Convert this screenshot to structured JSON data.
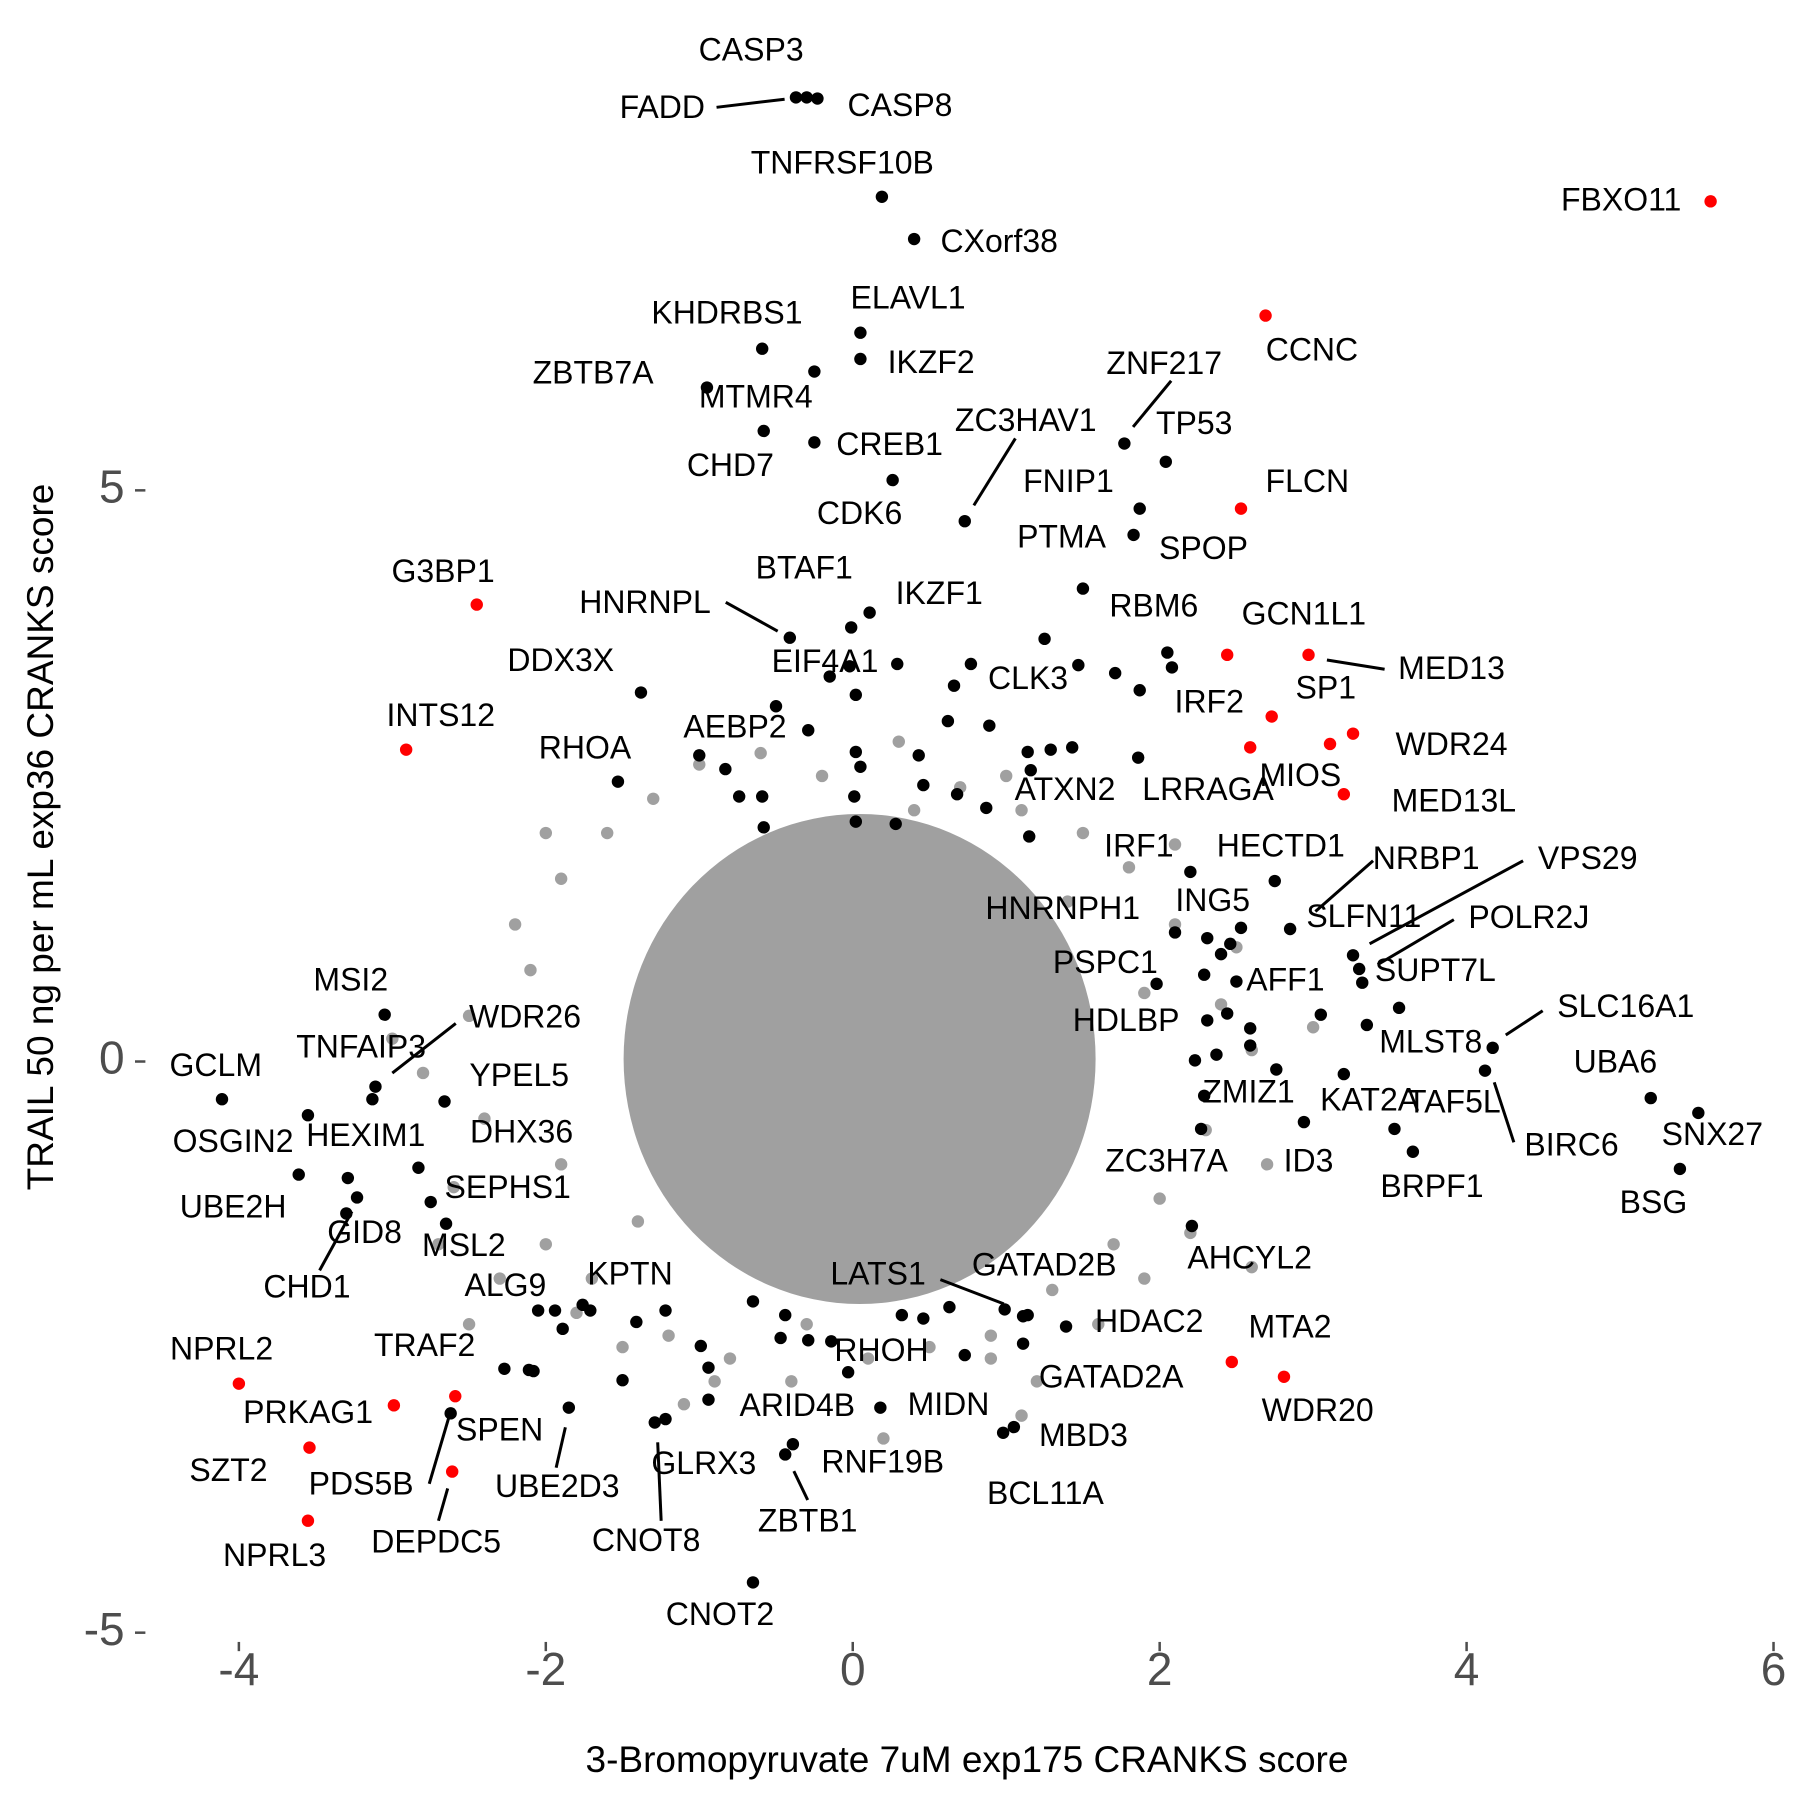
{
  "chart_data": {
    "type": "scatter",
    "x_label": "3-Bromopyruvate 7uM exp175 CRANKS score",
    "y_label": "TRAIL 50 ng per mL exp36 CRANKS score",
    "xlim": [
      -4.6,
      6.05
    ],
    "ylim": [
      -5.1,
      9.1
    ],
    "xticks": [
      -4,
      -2,
      0,
      2,
      4,
      6
    ],
    "yticks": [
      -5,
      0,
      5
    ],
    "series": [
      {
        "color": "#a0a0a0",
        "x": [
          -2.6,
          -2.4,
          -2.5,
          -2.2,
          -2.0,
          -1.9,
          -1.8,
          -1.6,
          -1.5,
          -1.3,
          -1.2,
          -1.0,
          -0.8,
          -0.6,
          -0.4,
          -0.2,
          0.1,
          0.3,
          0.5,
          0.7,
          0.9,
          1.1,
          1.3,
          1.5,
          1.7,
          1.8,
          2.0,
          2.1,
          2.3,
          2.4,
          2.6,
          2.2,
          -2.8,
          -2.3,
          1.9,
          -1.7,
          1.6,
          0.9,
          1.0,
          -0.9,
          2.5,
          -2.1,
          -2.7,
          2.7,
          -1.4,
          1.4,
          -1.9,
          1.9,
          -0.3,
          0.4,
          1.2,
          -2.5,
          3.0,
          -3.0,
          0.2,
          2.1,
          -2.0,
          1.1,
          -1.1,
          2.6
        ],
        "values": [
          -1.1,
          -0.5,
          0.4,
          1.2,
          -1.6,
          1.6,
          -2.2,
          2.0,
          -2.5,
          2.3,
          -2.4,
          2.6,
          -2.6,
          2.7,
          -2.8,
          2.5,
          -2.6,
          2.8,
          -2.5,
          2.4,
          -2.4,
          2.2,
          -2.0,
          2.0,
          -1.6,
          1.7,
          -1.2,
          1.2,
          -0.6,
          0.5,
          0.1,
          -1.5,
          -0.1,
          -1.9,
          -1.9,
          -1.9,
          -2.3,
          -2.6,
          2.5,
          -2.8,
          1.0,
          0.8,
          -1.6,
          -0.9,
          -1.4,
          1.4,
          -0.9,
          0.6,
          -2.3,
          2.2,
          -2.8,
          -2.3,
          0.3,
          0.2,
          -3.3,
          1.9,
          2.0,
          -3.1,
          -3.0,
          -1.8
        ]
      },
      {
        "color": "#000000",
        "x": [
          0.02,
          -0.02,
          -0.15,
          0.66,
          0.62,
          0.89,
          1.25,
          1.47,
          1.71,
          1.87,
          2.08,
          -0.29,
          0.02,
          0.05,
          0.01,
          0.02,
          0.28,
          0.43,
          0.46,
          0.68,
          0.87,
          1.16,
          1.29,
          1.43,
          1.15,
          -1.0,
          -0.83,
          -0.74,
          -0.59,
          -0.58,
          2.31,
          2.46,
          2.4,
          2.59,
          2.59,
          2.37,
          2.76,
          3.05,
          2.44,
          2.23,
          1.98,
          -1.94,
          -1.89,
          -1.76,
          -2.11,
          -1.5,
          -1.41,
          -1.22,
          -0.99,
          -0.94,
          -0.44,
          -0.47,
          -0.29,
          -0.14,
          0.32,
          0.46,
          0.63,
          0.73,
          1.14,
          -0.65,
          -2.08
        ],
        "values": [
          3.21,
          3.46,
          3.37,
          3.29,
          2.98,
          2.94,
          3.7,
          3.47,
          3.4,
          3.25,
          3.45,
          2.9,
          2.71,
          2.58,
          2.32,
          2.1,
          2.08,
          2.68,
          2.42,
          2.34,
          2.22,
          2.55,
          2.73,
          2.75,
          1.97,
          2.68,
          2.56,
          2.32,
          2.32,
          2.05,
          1.08,
          1.03,
          0.94,
          0.29,
          0.14,
          0.06,
          -0.07,
          0.41,
          0.42,
          0.01,
          0.68,
          -2.18,
          -2.34,
          -2.13,
          -2.7,
          -2.79,
          -2.28,
          -2.18,
          -2.49,
          -2.68,
          -2.22,
          -2.42,
          -2.44,
          -2.45,
          -2.22,
          -2.25,
          -2.15,
          -2.57,
          -2.22,
          -2.1,
          -2.71
        ]
      },
      {
        "color": "#000000",
        "labels": [
          "FADD",
          "CASP3",
          "CASP8",
          "TNFRSF10B",
          "CXorf38",
          "KHDRBS1",
          "ELAVL1",
          "IKZF2",
          "ZBTB7A",
          "MTMR4",
          "CHD7",
          "CREB1",
          "CDK6",
          "ZC3HAV1",
          "ZNF217",
          "TP53",
          "FNIP1",
          "SPOP",
          "PTMA",
          "RBM6",
          "BTAF1",
          "IKZF1",
          "HNRNPL",
          "EIF4A1",
          "DDX3X",
          "CLK3",
          "AEBP2",
          "RHOA",
          "ATXN2",
          "LRRAGA",
          "IRF1",
          "HECTD1",
          "NRBP1",
          "VPS29",
          "POLR2J",
          "HNRNPH1",
          "ING5",
          "SLFN11",
          "SUPT7L",
          "PSPC1",
          "AFF1",
          "HDLBP",
          "MLST8",
          "SLC16A1",
          "UBA6",
          "SNX27",
          "BSG",
          "BIRC6",
          "TAF5L",
          "KAT2A",
          "ZMIZ1",
          "ID3",
          "BRPF1",
          "ZC3H7A",
          "AHCYL2",
          "GATAD2B",
          "LATS1",
          "HDAC2",
          "GATAD2A",
          "MBD3",
          "BCL11A",
          "MIDN",
          "RHOH",
          "ARID4B",
          "RNF19B",
          "ZBTB1",
          "KPTN",
          "GLRX3",
          "CNOT8",
          "CNOT2",
          "UBE2D3",
          "ALG9",
          "MSL2",
          "SEPHS1",
          "DHX36",
          "YPEL5",
          "WDR26",
          "MSI2",
          "TNFAIP3",
          "GCLM",
          "OSGIN2",
          "HEXIM1",
          "UBE2H",
          "GID8",
          "CHD1",
          "TRAF2",
          "PDS5B"
        ],
        "x": [
          -0.37,
          -0.3,
          -0.23,
          0.19,
          0.4,
          -0.59,
          0.05,
          0.05,
          -0.95,
          -0.25,
          -0.58,
          -0.25,
          0.26,
          0.73,
          1.77,
          2.04,
          1.87,
          1.83,
          1.5,
          2.05,
          0.11,
          -0.01,
          -0.41,
          0.29,
          -1.38,
          0.77,
          -0.5,
          -1.53,
          1.14,
          1.86,
          2.2,
          2.75,
          2.85,
          3.26,
          3.3,
          2.1,
          2.53,
          3.32,
          3.56,
          2.29,
          2.5,
          2.31,
          3.35,
          4.17,
          5.2,
          5.51,
          5.39,
          4.12,
          3.53,
          3.2,
          2.29,
          2.94,
          3.65,
          2.27,
          2.21,
          0.99,
          1.11,
          1.39,
          1.11,
          1.05,
          0.98,
          0.18,
          -0.03,
          -0.94,
          -0.39,
          -0.44,
          -1.71,
          -1.22,
          -1.29,
          -0.65,
          -1.85,
          -2.05,
          -2.65,
          -2.75,
          -2.83,
          -2.66,
          -3.11,
          -3.05,
          -3.13,
          -4.11,
          -3.55,
          -3.29,
          -3.61,
          -3.3,
          -3.23,
          -2.27,
          -2.62
        ],
        "values": [
          8.44,
          8.44,
          8.43,
          7.57,
          7.2,
          6.24,
          6.38,
          6.15,
          5.9,
          6.04,
          5.52,
          5.42,
          5.09,
          4.73,
          5.41,
          5.25,
          4.84,
          4.61,
          4.14,
          3.58,
          3.93,
          3.8,
          3.71,
          3.48,
          3.23,
          3.48,
          3.11,
          2.45,
          2.71,
          2.66,
          1.66,
          1.58,
          1.16,
          0.93,
          0.81,
          1.13,
          1.17,
          0.69,
          0.47,
          0.76,
          0.7,
          0.36,
          0.32,
          0.12,
          -0.32,
          -0.45,
          -0.94,
          -0.08,
          -0.59,
          -0.11,
          -0.3,
          -0.53,
          -0.79,
          -0.59,
          -1.44,
          -2.17,
          -2.23,
          -2.32,
          -2.47,
          -3.2,
          -3.25,
          -3.03,
          -2.72,
          -2.96,
          -3.35,
          -3.44,
          -2.18,
          -3.13,
          -3.16,
          -4.56,
          -3.03,
          -2.18,
          -1.42,
          -1.23,
          -0.93,
          -0.35,
          -0.22,
          0.41,
          -0.33,
          -0.33,
          -0.47,
          -1.02,
          -0.99,
          -1.33,
          -1.19,
          -2.69,
          -3.08
        ]
      },
      {
        "color": "#ff0000",
        "labels": [
          "FBXO11",
          "CCNC",
          "FLCN",
          "G3BP1",
          "GCN1L1",
          "MED13",
          "SP1",
          "IRF2",
          "WDR24",
          "MIOS",
          "MED13L",
          "INTS12",
          "MTA2",
          "WDR20",
          "NPRL2",
          "PRKAG1",
          "SPEN",
          "SZT2",
          "DEPDC5",
          "NPRL3"
        ],
        "x": [
          5.59,
          2.69,
          2.53,
          -2.45,
          2.44,
          2.97,
          2.73,
          2.59,
          3.26,
          3.11,
          3.2,
          -2.91,
          2.47,
          2.81,
          -4.0,
          -2.99,
          -2.59,
          -3.54,
          -2.61,
          -3.55
        ],
        "values": [
          7.53,
          6.53,
          4.84,
          4.0,
          3.56,
          3.56,
          3.02,
          2.75,
          2.87,
          2.78,
          2.34,
          2.73,
          -2.63,
          -2.76,
          -2.82,
          -3.01,
          -2.93,
          -3.38,
          -3.59,
          -4.02
        ]
      }
    ]
  }
}
